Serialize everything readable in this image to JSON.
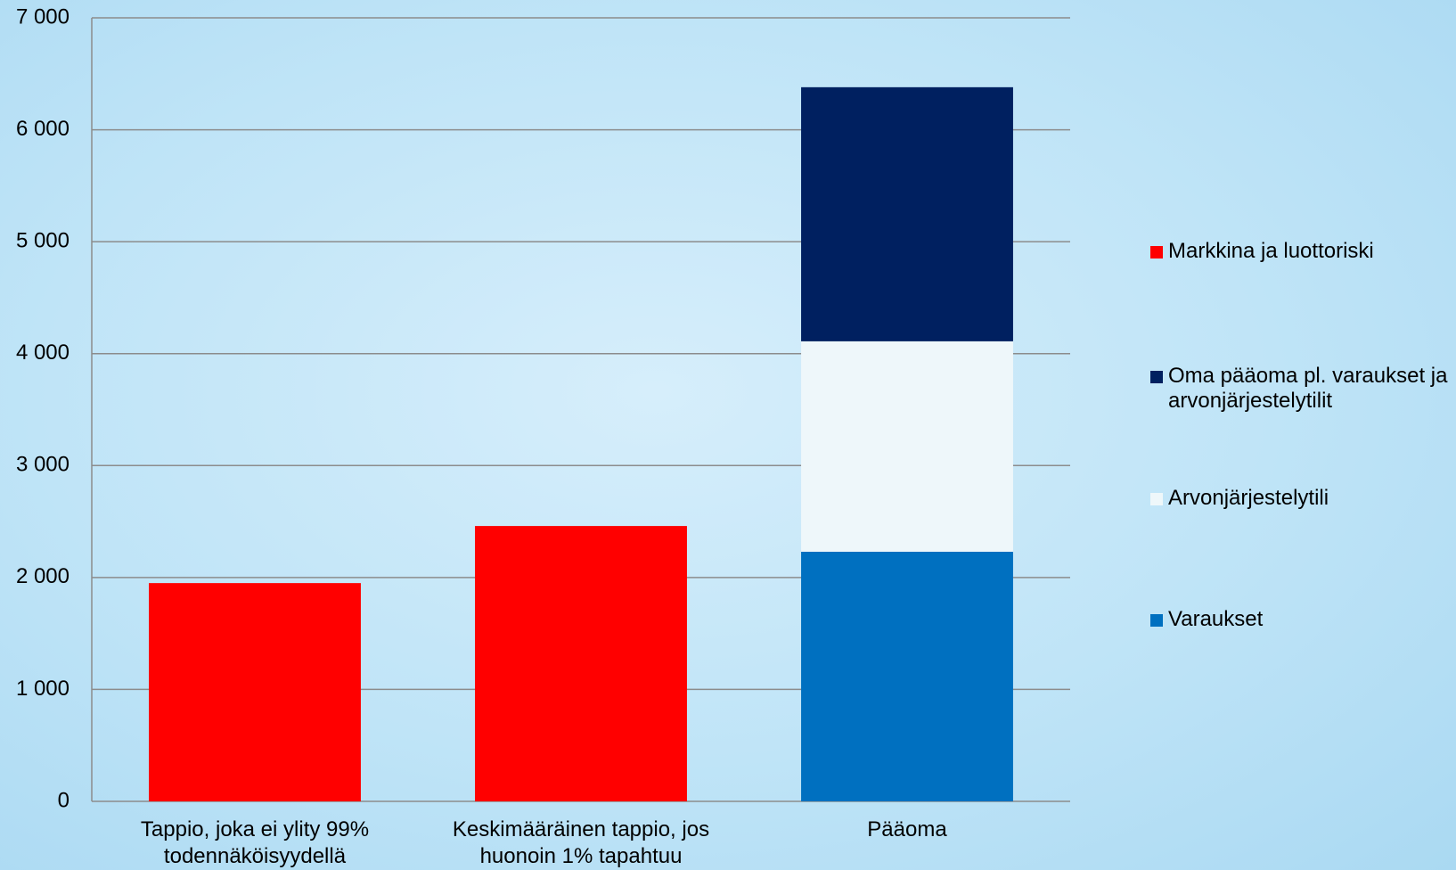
{
  "chart_data": {
    "type": "stacked-bar",
    "categories": [
      "Tappio, joka ei ylity 99% todennäköisyydellä",
      "Keskimääräinen tappio, jos huonoin 1% tapahtuu",
      "Pääoma"
    ],
    "series": [
      {
        "name": "Markkina ja luottoriski",
        "color": "#ff0000",
        "values": [
          1950,
          2460,
          null
        ]
      },
      {
        "name": "Varaukset",
        "color": "#0070c0",
        "values": [
          null,
          null,
          2230
        ]
      },
      {
        "name": "Arvonjärjestelytili",
        "color": "#eef7fa",
        "values": [
          null,
          null,
          1880
        ]
      },
      {
        "name": "Oma pääoma pl. varaukset ja arvonjärjestelytilit",
        "color": "#002060",
        "values": [
          null,
          null,
          2270
        ]
      }
    ],
    "ylim": [
      0,
      7000
    ],
    "yticks": [
      0,
      {
        "value": 1000,
        "label": "1 000"
      },
      {
        "value": 2000,
        "label": "2 000"
      },
      {
        "value": 3000,
        "label": "3 000"
      },
      {
        "value": 4000,
        "label": "4 000"
      },
      {
        "value": 5000,
        "label": "5 000"
      },
      {
        "value": 6000,
        "label": "6 000"
      },
      {
        "value": 7000,
        "label": "7 000"
      }
    ],
    "grid": true,
    "legend": "right"
  }
}
